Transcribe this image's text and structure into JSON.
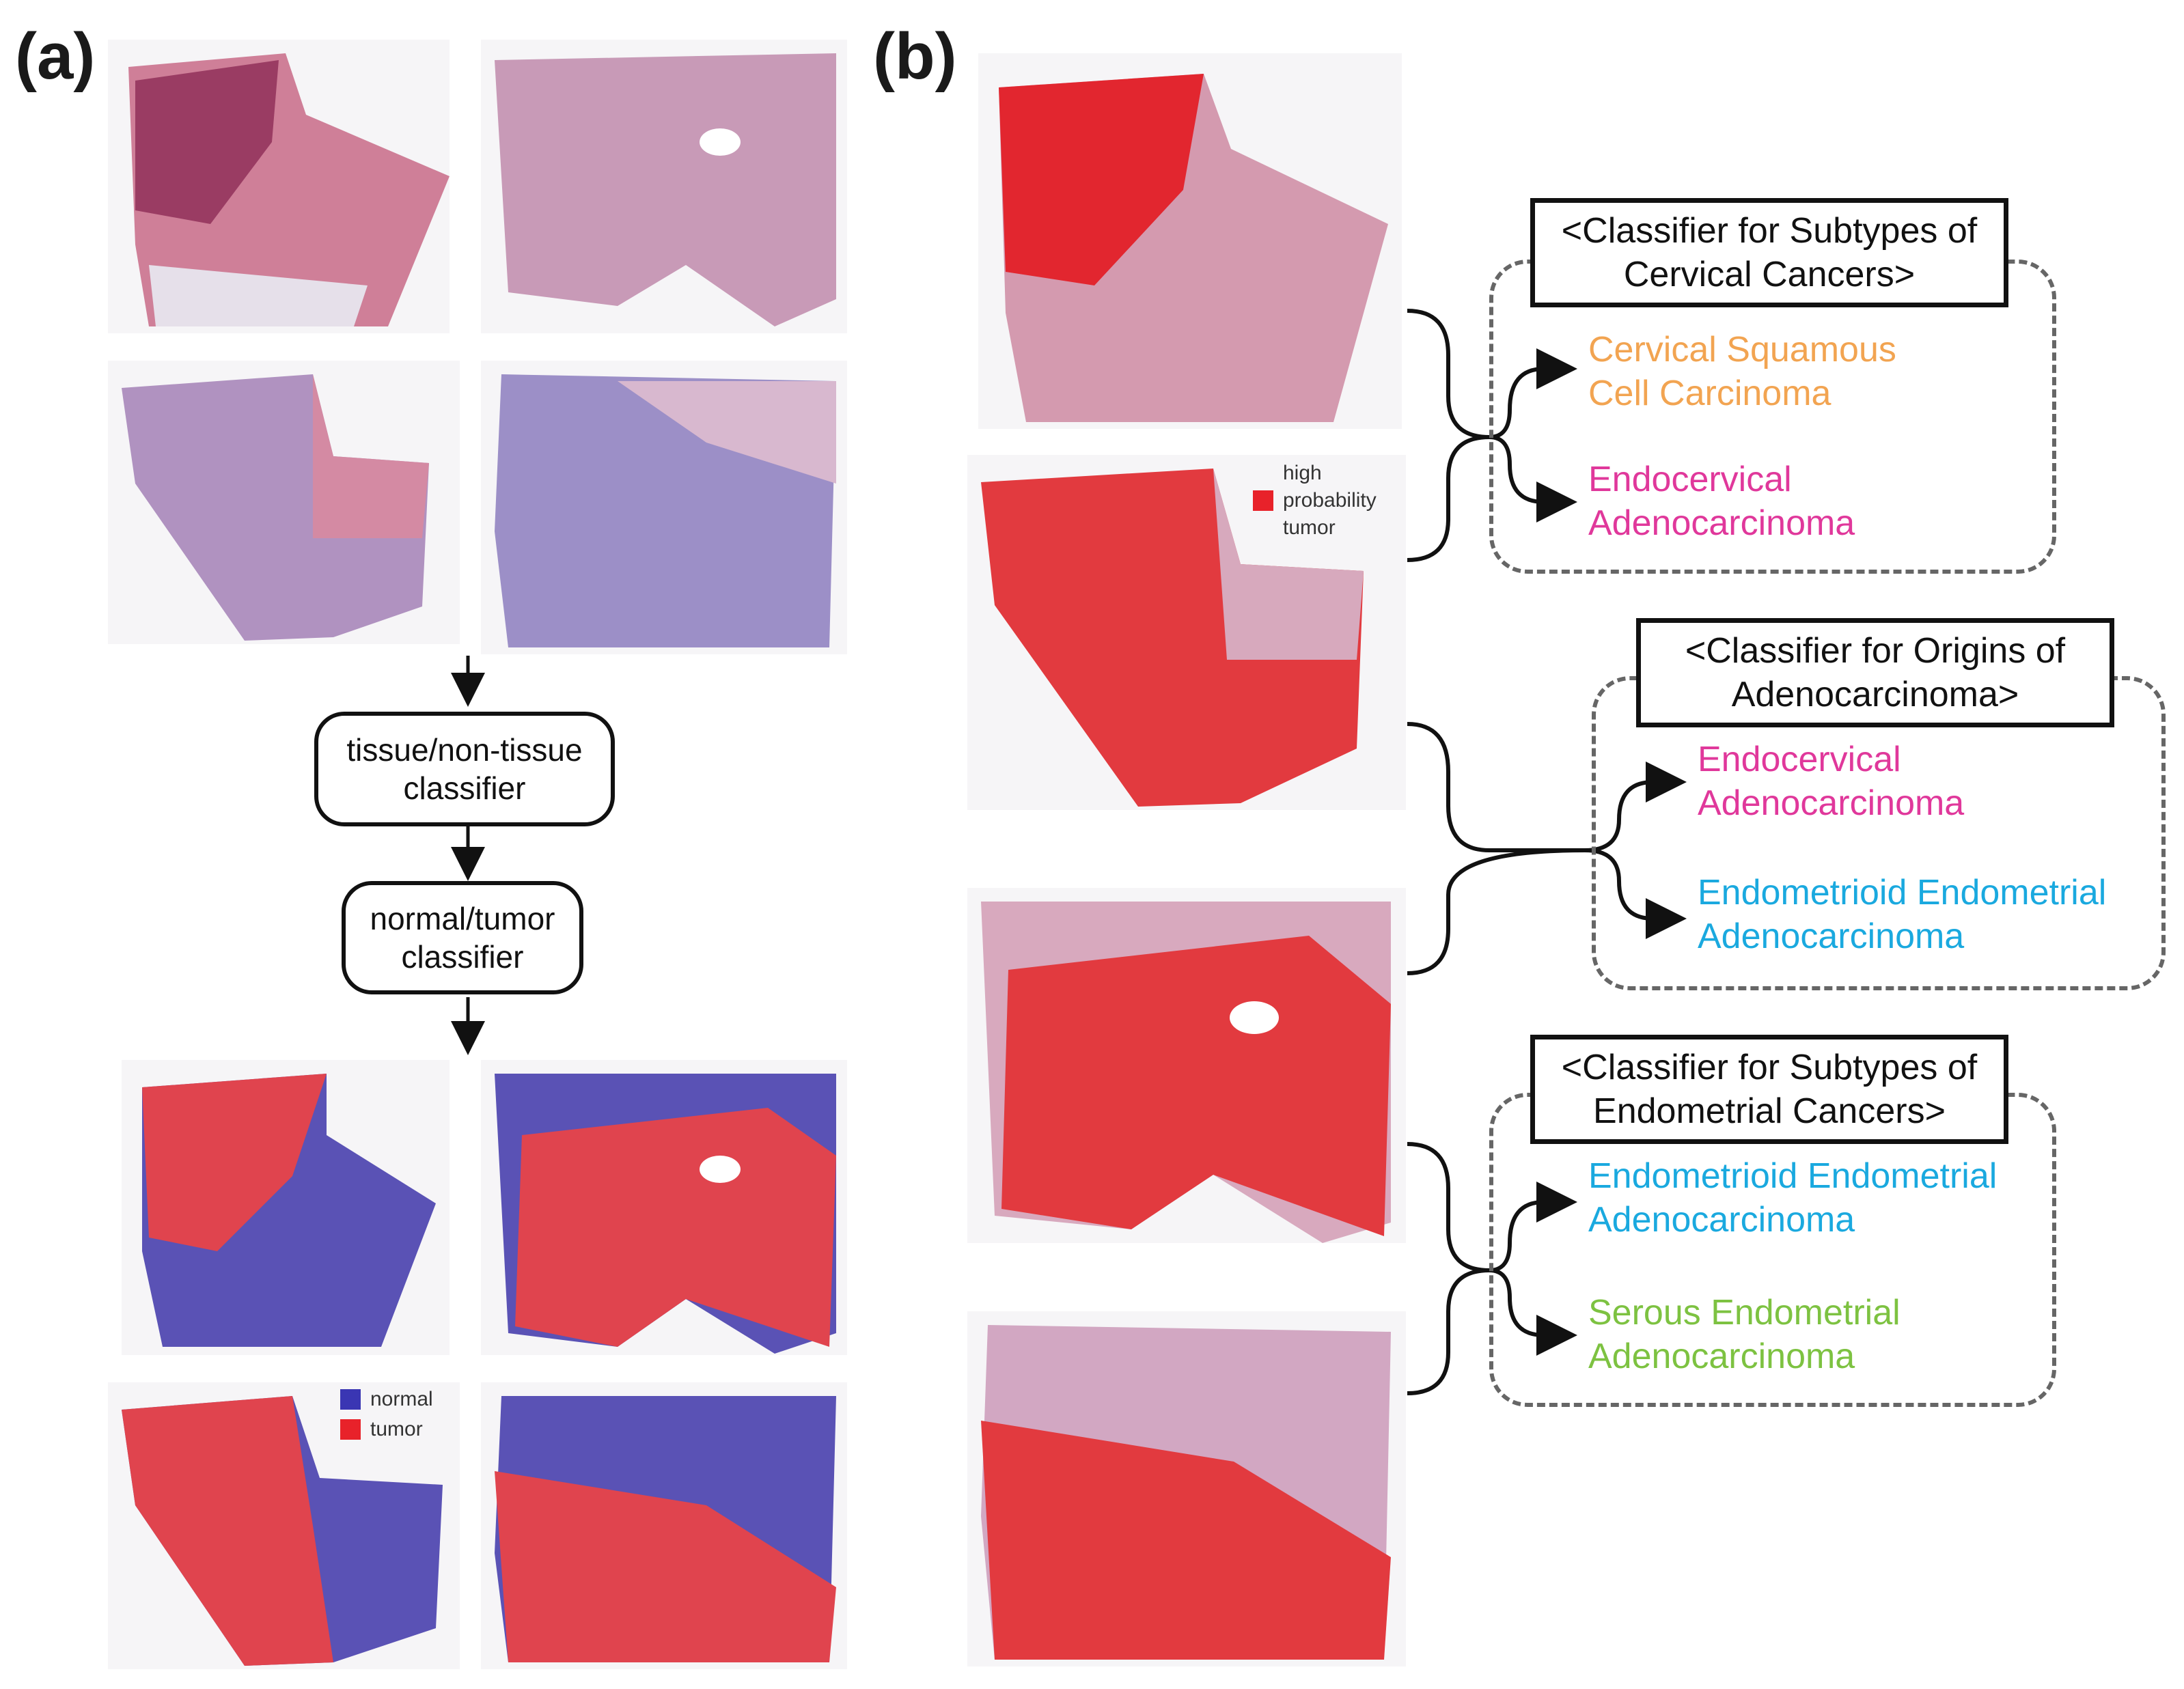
{
  "panel_a": {
    "label": "(a)",
    "step1": "tissue/non-tissue\nclassifier",
    "step2": "normal/tumor\nclassifier",
    "legend": {
      "normal": "normal",
      "tumor": "tumor"
    }
  },
  "panel_b": {
    "label": "(b)",
    "legend": {
      "line1": "high",
      "line2": "probability",
      "line3": "tumor"
    },
    "classifiers": [
      {
        "title": "<Classifier for Subtypes of\nCervical Cancers>",
        "outputs": [
          {
            "text": "Cervical Squamous\nCell Carcinoma",
            "color": "#f2a451"
          },
          {
            "text": "Endocervical\nAdenocarcinoma",
            "color": "#e0389b"
          }
        ]
      },
      {
        "title": "<Classifier for Origins of\nAdenocarcinoma>",
        "outputs": [
          {
            "text": "Endocervical\nAdenocarcinoma",
            "color": "#e0389b"
          },
          {
            "text": "Endometrioid Endometrial\nAdenocarcinoma",
            "color": "#1aa9df"
          }
        ]
      },
      {
        "title": "<Classifier for Subtypes of\nEndometrial Cancers>",
        "outputs": [
          {
            "text": "Endometrioid Endometrial\nAdenocarcinoma",
            "color": "#1aa9df"
          },
          {
            "text": "Serous Endometrial\nAdenocarcinoma",
            "color": "#7dc241"
          }
        ]
      }
    ]
  },
  "colors": {
    "he_pink": "#c97f9d",
    "he_purple": "#a98bbd",
    "normal_blue": "#5a52b5",
    "tumor_red": "#e0444e",
    "mask_red": "#e23a3f"
  }
}
